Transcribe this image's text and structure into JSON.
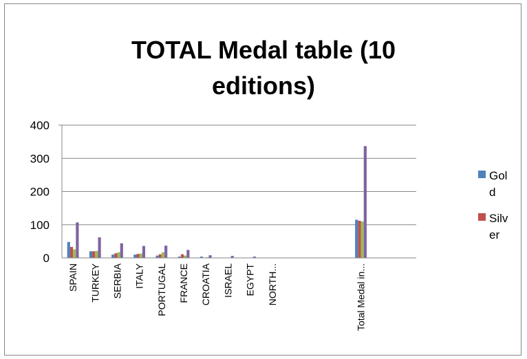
{
  "chart_data": {
    "type": "bar",
    "title": "TOTAL Medal table (10 editions)",
    "title_lines": [
      "TOTAL Medal table (10",
      "editions)"
    ],
    "categories": [
      "SPAIN",
      "TURKEY",
      "SERBIA",
      "ITALY",
      "PORTUGAL",
      "FRANCE",
      "CROATIA",
      "ISRAEL",
      "EGYPT",
      "NORTH...",
      "",
      "",
      "",
      "Total Medal in...",
      "",
      ""
    ],
    "series": [
      {
        "name": "Gold",
        "legend_lines": [
          "Gol",
          "d"
        ],
        "color": "#4F81BD",
        "values": [
          48,
          20,
          10,
          10,
          7,
          4,
          4,
          1,
          1,
          1,
          null,
          null,
          null,
          115,
          null,
          null
        ]
      },
      {
        "name": "Silver",
        "legend_lines": [
          "Silv",
          "er"
        ],
        "color": "#C0504D",
        "values": [
          33,
          20,
          14,
          12,
          11,
          11,
          1,
          1,
          1,
          0,
          null,
          null,
          null,
          112,
          null,
          null
        ]
      },
      {
        "color": "#9BBB59",
        "values": [
          26,
          21,
          17,
          13,
          17,
          7,
          2,
          1,
          1,
          0,
          null,
          null,
          null,
          110,
          null,
          null
        ]
      },
      {
        "color": "#8064A2",
        "values": [
          107,
          62,
          44,
          36,
          37,
          24,
          8,
          6,
          4,
          1,
          null,
          null,
          null,
          337,
          null,
          null
        ]
      }
    ],
    "ylim": [
      0,
      400
    ],
    "yticks": [
      0,
      100,
      200,
      300,
      400
    ],
    "grid": true,
    "legend_position": "right"
  }
}
